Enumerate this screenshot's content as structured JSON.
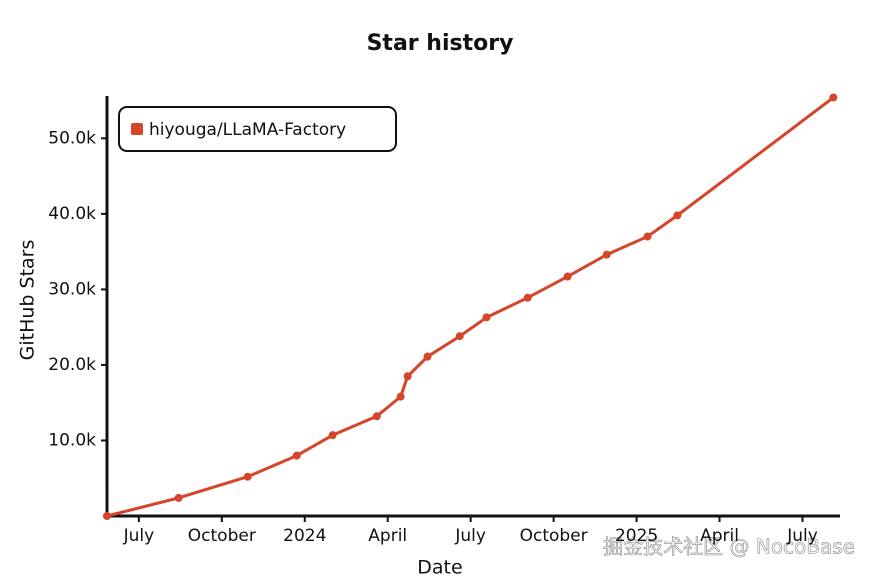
{
  "chart_data": {
    "type": "line",
    "title": "Star history",
    "x_label": "Date",
    "y_label": "GitHub Stars",
    "x": [
      2023.404,
      2023.62,
      2023.828,
      2023.976,
      2024.084,
      2024.217,
      2024.289,
      2024.31,
      2024.37,
      2024.467,
      2024.548,
      2024.672,
      2024.792,
      2024.91,
      2025.033,
      2025.123,
      2025.593
    ],
    "series": [
      {
        "name": "hiyouga/LLaMA-Factory",
        "color": "#d6442a",
        "values": [
          0,
          2400,
          5200,
          8000,
          10700,
          13200,
          15800,
          18500,
          21100,
          23800,
          26300,
          28900,
          31700,
          34600,
          37000,
          39800,
          55400
        ]
      }
    ],
    "xlim": [
      2023.404,
      2025.61
    ],
    "xticks": [
      {
        "value": 2023.5,
        "label": "July"
      },
      {
        "value": 2023.75,
        "label": "October"
      },
      {
        "value": 2024,
        "label": "2024"
      },
      {
        "value": 2024.25,
        "label": "April"
      },
      {
        "value": 2024.5,
        "label": "July"
      },
      {
        "value": 2024.75,
        "label": "October"
      },
      {
        "value": 2025,
        "label": "2025"
      },
      {
        "value": 2025.25,
        "label": "April"
      },
      {
        "value": 2025.5,
        "label": "July"
      }
    ],
    "ylim": [
      0,
      56000
    ],
    "yticks": [
      {
        "value": 10000,
        "label": "10.0k"
      },
      {
        "value": 20000,
        "label": "20.0k"
      },
      {
        "value": 30000,
        "label": "30.0k"
      },
      {
        "value": 40000,
        "label": "40.0k"
      },
      {
        "value": 50000,
        "label": "50.0k"
      }
    ],
    "legend": "top-left",
    "watermark": "掘金技术社区 @ NocoBase"
  }
}
